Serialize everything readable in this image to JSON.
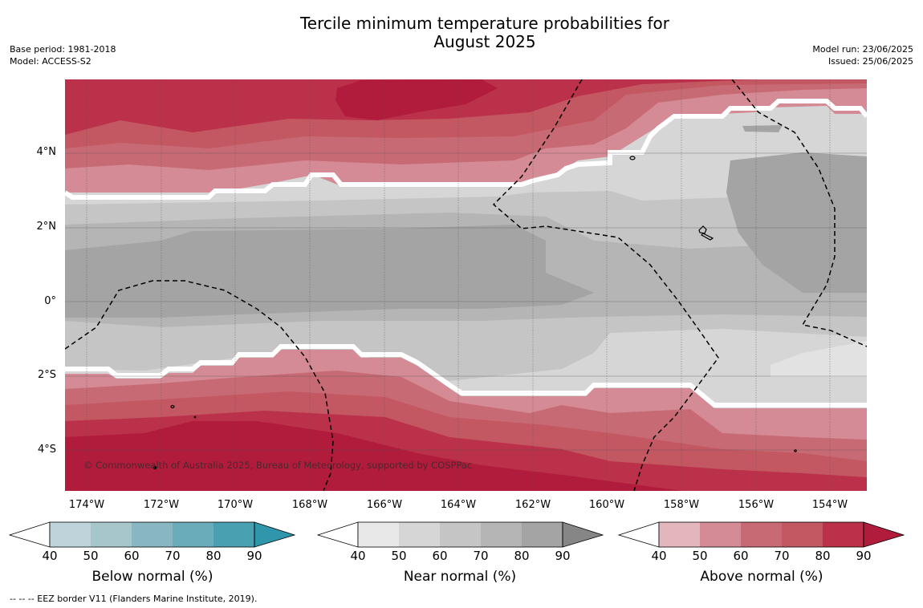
{
  "title_line1": "Tercile minimum temperature probabilities for",
  "title_line2": "August 2025",
  "base_period": "Base period: 1981-2018",
  "model": "Model: ACCESS-S2",
  "model_run": "Model run: 23/06/2025",
  "issued": "Issued: 25/06/2025",
  "copyright": "© Commonwealth of Australia 2025, Bureau of Meteorology, supported by COSPPac",
  "lat_ticks": [
    "4°N",
    "2°N",
    "0°",
    "2°S",
    "4°S"
  ],
  "lon_ticks": [
    "174°W",
    "172°W",
    "170°W",
    "168°W",
    "166°W",
    "164°W",
    "162°W",
    "160°W",
    "158°W",
    "156°W",
    "154°W"
  ],
  "colorbars": [
    {
      "label": "Below normal (%)",
      "ticks": [
        "40",
        "50",
        "60",
        "70",
        "80",
        "90"
      ],
      "colors": [
        "#bed4da",
        "#a6c6cc",
        "#88b7c3",
        "#6aacb9",
        "#48a0b1",
        "#2f96ab"
      ]
    },
    {
      "label": "Near normal (%)",
      "ticks": [
        "40",
        "50",
        "60",
        "70",
        "80",
        "90"
      ],
      "colors": [
        "#e8e8e8",
        "#d6d6d6",
        "#c5c5c5",
        "#b5b5b5",
        "#a4a4a4",
        "#868686"
      ]
    },
    {
      "label": "Above normal (%)",
      "ticks": [
        "40",
        "50",
        "60",
        "70",
        "80",
        "90"
      ],
      "colors": [
        "#e2b6bc",
        "#d48b95",
        "#c86a74",
        "#c35762",
        "#bb3149",
        "#b11b3c"
      ]
    }
  ],
  "footnote": "--  --  -- EEZ border V11 (Flanders Marine Institute, 2019)."
}
